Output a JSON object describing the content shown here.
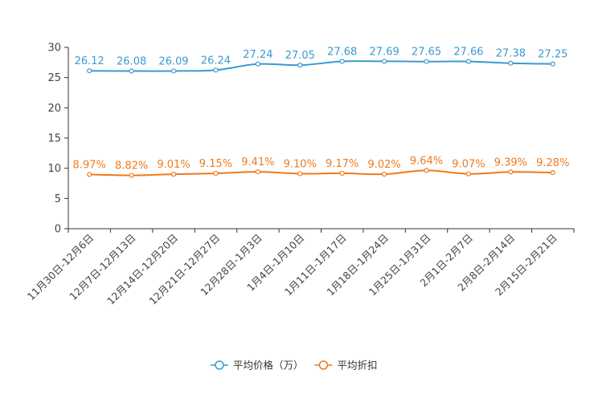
{
  "chart_data": {
    "type": "line",
    "title": "",
    "xlabel": "",
    "ylabel": "",
    "ylim": [
      0,
      30
    ],
    "yticks": [
      0,
      5,
      10,
      15,
      20,
      25,
      30
    ],
    "grid": false,
    "legend_position": "bottom-center",
    "categories": [
      "11月30日-12月6日",
      "12月7日-12月13日",
      "12月14日-12月20日",
      "12月21日-12月27日",
      "12月28日-1月3日",
      "1月4日-1月10日",
      "1月11日-1月17日",
      "1月18日-1月24日",
      "1月25日-1月31日",
      "2月1日-2月7日",
      "2月8日-2月14日",
      "2月15日-2月21日"
    ],
    "series": [
      {
        "name": "平均价格（万）",
        "color": "#3a9ad1",
        "values": [
          26.12,
          26.08,
          26.09,
          26.24,
          27.24,
          27.05,
          27.68,
          27.69,
          27.65,
          27.66,
          27.38,
          27.25
        ],
        "labels": [
          "26.12",
          "26.08",
          "26.09",
          "26.24",
          "27.24",
          "27.05",
          "27.68",
          "27.69",
          "27.65",
          "27.66",
          "27.38",
          "27.25"
        ]
      },
      {
        "name": "平均折扣",
        "color": "#f07a1c",
        "values": [
          8.97,
          8.82,
          9.01,
          9.15,
          9.41,
          9.1,
          9.17,
          9.02,
          9.64,
          9.07,
          9.39,
          9.28
        ],
        "labels": [
          "8.97%",
          "8.82%",
          "9.01%",
          "9.15%",
          "9.41%",
          "9.10%",
          "9.17%",
          "9.02%",
          "9.64%",
          "9.07%",
          "9.39%",
          "9.28%"
        ]
      }
    ]
  }
}
